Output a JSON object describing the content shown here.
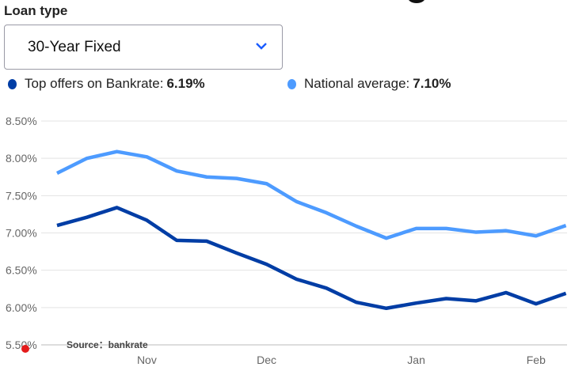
{
  "loan_type": {
    "label": "Loan type",
    "selected": "30-Year Fixed"
  },
  "legend": [
    {
      "name": "Top offers on Bankrate:",
      "value": "6.19%",
      "color": "#003da5"
    },
    {
      "name": "National average:",
      "value": "7.10%",
      "color": "#4d9bff"
    }
  ],
  "source": "Source：bankrate",
  "chart_data": {
    "type": "line",
    "ylim": [
      5.5,
      8.5
    ],
    "yticks": [
      "8.50%",
      "8.00%",
      "7.50%",
      "7.00%",
      "6.50%",
      "6.00%",
      "5.50%"
    ],
    "ytick_values": [
      8.5,
      8.0,
      7.5,
      7.0,
      6.5,
      6.0,
      5.5
    ],
    "xtick_labels": [
      {
        "label": "Nov",
        "index": 3
      },
      {
        "label": "Dec",
        "index": 7
      },
      {
        "label": "Jan",
        "index": 12
      },
      {
        "label": "Feb",
        "index": 16
      }
    ],
    "grid": true,
    "series": [
      {
        "name": "Top offers on Bankrate",
        "color": "#003da5",
        "values": [
          7.1,
          7.21,
          7.34,
          7.17,
          6.9,
          6.89,
          6.73,
          6.58,
          6.38,
          6.26,
          6.07,
          5.99,
          6.06,
          6.12,
          6.09,
          6.2,
          6.05,
          6.19
        ]
      },
      {
        "name": "National average",
        "color": "#4d9bff",
        "values": [
          7.8,
          8.0,
          8.09,
          8.02,
          7.83,
          7.75,
          7.73,
          7.66,
          7.42,
          7.27,
          7.09,
          6.93,
          7.06,
          7.06,
          7.01,
          7.03,
          6.96,
          7.1
        ]
      }
    ]
  }
}
